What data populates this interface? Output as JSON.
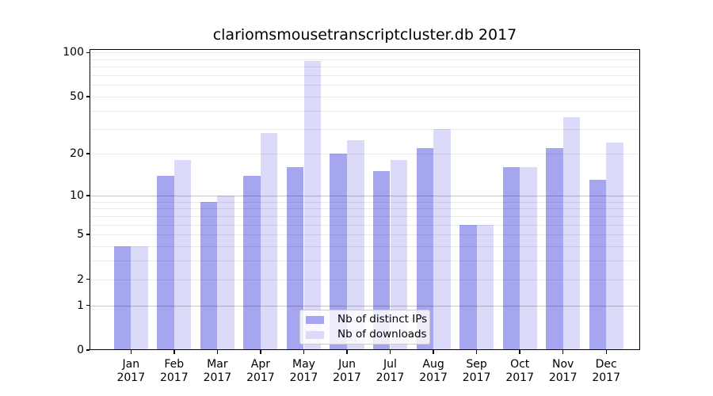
{
  "chart": {
    "title": "clariomsmousetranscriptcluster.db 2017"
  },
  "colors": {
    "distinct_ips": "#a5a5f0",
    "downloads": "#dbdbf9",
    "grid_minor": "#eaeaea",
    "grid_major": "#c6c6c6",
    "axis": "#000000",
    "legend_border": "#cccccc"
  },
  "y_axis": {
    "tick_values": [
      0,
      1,
      2,
      5,
      10,
      20,
      50,
      100
    ],
    "tick_labels": [
      "0",
      "1",
      "2",
      "5",
      "10",
      "20",
      "50",
      "100"
    ],
    "gridline_values": [
      1,
      2,
      3,
      4,
      5,
      6,
      7,
      8,
      9,
      10,
      20,
      30,
      40,
      50,
      60,
      70,
      80,
      90,
      100
    ],
    "major_gridline_values": [
      1,
      10
    ]
  },
  "x_axis": {
    "months": [
      "Jan",
      "Feb",
      "Mar",
      "Apr",
      "May",
      "Jun",
      "Jul",
      "Aug",
      "Sep",
      "Oct",
      "Nov",
      "Dec"
    ],
    "year": "2017"
  },
  "legend": {
    "items": [
      {
        "label": "Nb of distinct IPs",
        "series": "distinct_ips"
      },
      {
        "label": "Nb of downloads",
        "series": "downloads"
      }
    ]
  },
  "chart_data": {
    "type": "bar",
    "title": "clariomsmousetranscriptcluster.db 2017",
    "categories": [
      "Jan 2017",
      "Feb 2017",
      "Mar 2017",
      "Apr 2017",
      "May 2017",
      "Jun 2017",
      "Jul 2017",
      "Aug 2017",
      "Sep 2017",
      "Oct 2017",
      "Nov 2017",
      "Dec 2017"
    ],
    "series": [
      {
        "name": "Nb of distinct IPs",
        "key": "distinct_ips",
        "values": [
          4,
          14,
          9,
          14,
          16,
          20,
          15,
          22,
          6,
          16,
          22,
          13
        ]
      },
      {
        "name": "Nb of downloads",
        "key": "downloads",
        "values": [
          4,
          18,
          10,
          28,
          88,
          25,
          18,
          30,
          6,
          16,
          36,
          24
        ]
      }
    ],
    "xlabel": "",
    "ylabel": "",
    "yscale": "log1p",
    "ylim": [
      0,
      100
    ],
    "yticks": [
      0,
      1,
      2,
      5,
      10,
      20,
      50,
      100
    ],
    "grid": "horizontal",
    "legend_position": "lower center"
  }
}
